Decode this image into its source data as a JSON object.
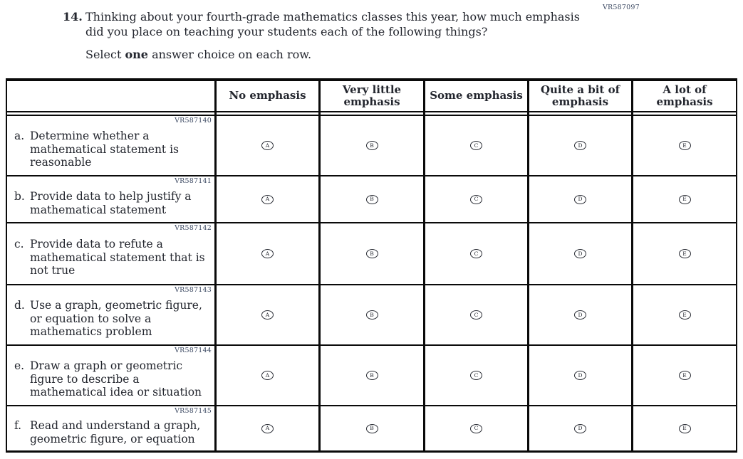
{
  "form_code": "VR587097",
  "question": {
    "number": "14.",
    "text": "Thinking about your fourth-grade mathematics classes this year, how much emphasis\ndid you place on teaching your students each of the following things?",
    "instruction_prefix": "Select ",
    "instruction_bold": "one",
    "instruction_suffix": " answer choice on each row."
  },
  "table": {
    "columns": [
      "No emphasis",
      "Very little\nemphasis",
      "Some emphasis",
      "Quite a bit of\nemphasis",
      "A lot of\nemphasis"
    ],
    "option_letters": [
      "A",
      "B",
      "C",
      "D",
      "E"
    ],
    "rows": [
      {
        "code": "VR587140",
        "letter": "a.",
        "text": "Determine whether a\nmathematical statement is\nreasonable"
      },
      {
        "code": "VR587141",
        "letter": "b.",
        "text": "Provide data to help justify a\nmathematical statement"
      },
      {
        "code": "VR587142",
        "letter": "c.",
        "text": "Provide data to refute a\nmathematical statement that is\nnot true"
      },
      {
        "code": "VR587143",
        "letter": "d.",
        "text": "Use a graph, geometric figure,\nor equation to solve a\nmathematics problem"
      },
      {
        "code": "VR587144",
        "letter": "e.",
        "text": "Draw a graph or geometric\nfigure to describe a\nmathematical idea or situation"
      },
      {
        "code": "VR587145",
        "letter": "f.",
        "text": "Read and understand a graph,\ngeometric figure, or equation"
      }
    ]
  }
}
